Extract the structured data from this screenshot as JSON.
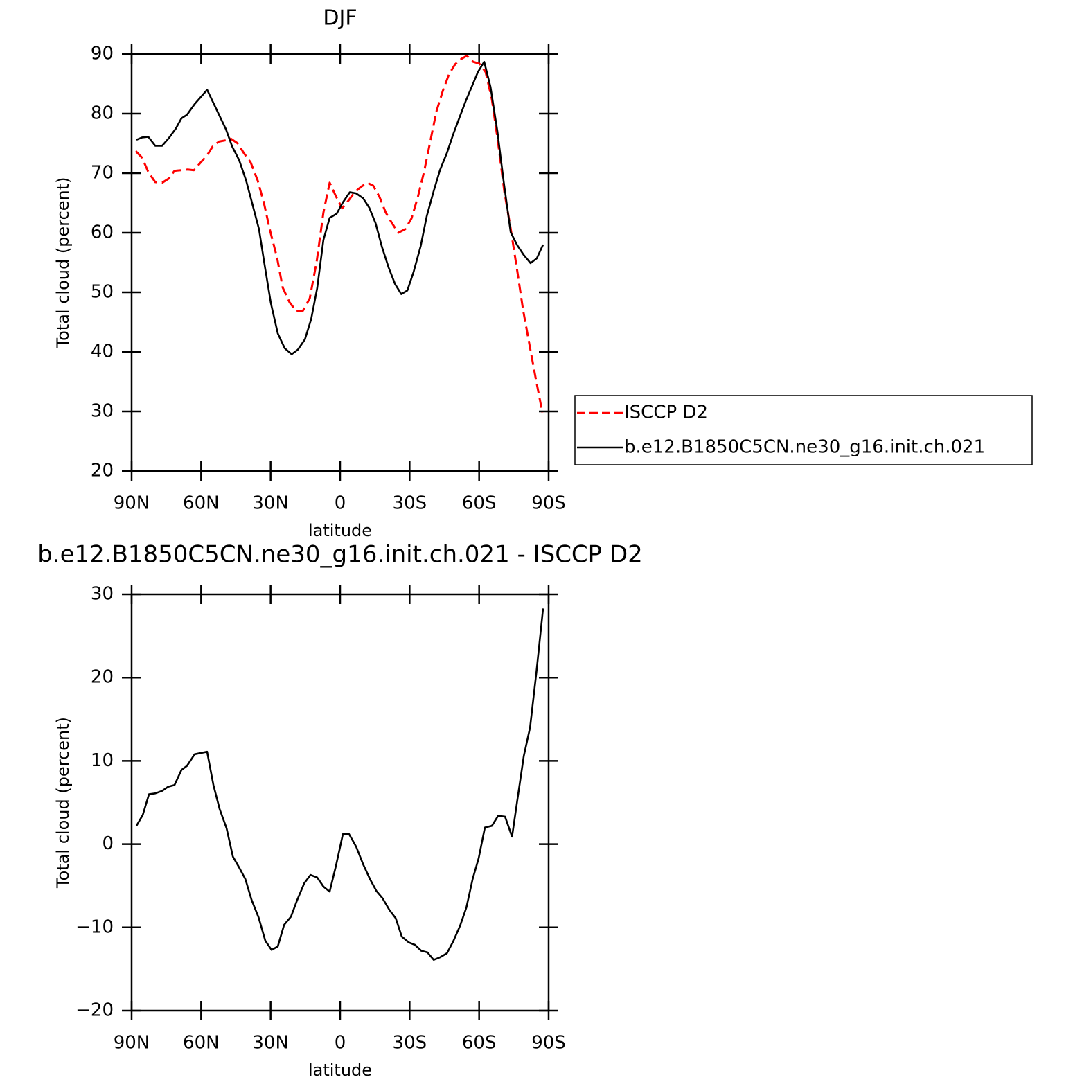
{
  "chart_data": [
    {
      "type": "line",
      "title": "DJF",
      "xlabel": "latitude",
      "ylabel": "Total cloud (percent)",
      "xlim": [
        90,
        -90
      ],
      "xticks": [
        {
          "value": 90,
          "label": "90N"
        },
        {
          "value": 60,
          "label": "60N"
        },
        {
          "value": 30,
          "label": "30N"
        },
        0,
        {
          "value": -30,
          "label": "30S"
        },
        {
          "value": -60,
          "label": "60S"
        },
        {
          "value": -90,
          "label": "90S"
        }
      ],
      "ylim": [
        20,
        90
      ],
      "yticks": [
        20,
        30,
        40,
        50,
        60,
        70,
        80,
        90
      ],
      "legend": "right",
      "series": [
        {
          "name": "ISCCP D2",
          "color": "#ff0000",
          "line_style": "dashed",
          "x": [
            88.2,
            85.5,
            82.8,
            79.8,
            76.8,
            73.9,
            71.5,
            68.5,
            65.8,
            63.1,
            60.4,
            57.4,
            55.0,
            52.3,
            49.6,
            47.2,
            44.2,
            41.6,
            38.6,
            35.6,
            32.9,
            30.2,
            27.2,
            24.8,
            21.8,
            18.8,
            16.1,
            13.1,
            10.1,
            7.2,
            4.5,
            1.8,
            -0.9,
            -3.6,
            -6.3,
            -9.0,
            -11.7,
            -14.3,
            -17.0,
            -19.7,
            -22.4,
            -25.1,
            -28.1,
            -30.8,
            -33.5,
            -36.2,
            -38.9,
            -41.6,
            -44.3,
            -47.0,
            -49.7,
            -52.4,
            -54.7,
            -57.4,
            -60.1,
            -62.8,
            -65.5,
            -68.2,
            -70.9,
            -73.6,
            -76.3,
            -79.0,
            -81.7,
            -84.4,
            -87.3
          ],
          "values": [
            73.7,
            72.6,
            70.2,
            68.5,
            68.4,
            69.1,
            70.4,
            70.5,
            70.6,
            70.5,
            71.7,
            73.0,
            74.5,
            75.3,
            75.5,
            75.8,
            75.0,
            73.4,
            71.8,
            68.8,
            65.0,
            60.3,
            55.8,
            50.8,
            48.3,
            46.8,
            46.9,
            49.0,
            55.2,
            63.4,
            68.4,
            66.1,
            64.1,
            65.4,
            66.8,
            67.7,
            68.4,
            67.9,
            66.0,
            63.4,
            61.6,
            60.0,
            60.6,
            62.4,
            65.9,
            70.2,
            75.3,
            80.4,
            83.8,
            86.6,
            88.3,
            89.2,
            89.7,
            88.7,
            88.4,
            87.0,
            82.4,
            75.1,
            66.9,
            60.7,
            54.0,
            47.0,
            41.3,
            35.6,
            29.8
          ]
        },
        {
          "name": "b.e12.B1850C5CN.ne30_g16.init.ch.021",
          "color": "#000000",
          "line_style": "solid",
          "x": [
            87.9,
            85.5,
            82.8,
            79.8,
            76.8,
            73.9,
            70.9,
            68.5,
            66.1,
            62.8,
            57.4,
            49.3,
            46.6,
            43.6,
            40.6,
            38.0,
            35.0,
            32.6,
            29.9,
            26.9,
            23.9,
            20.9,
            18.2,
            15.2,
            12.5,
            9.9,
            7.2,
            4.5,
            1.5,
            -1.2,
            -4.2,
            -6.9,
            -9.9,
            -12.6,
            -15.3,
            -18.0,
            -21.0,
            -23.7,
            -26.4,
            -29.0,
            -31.7,
            -34.8,
            -37.4,
            -40.4,
            -43.1,
            -46.1,
            -48.8,
            -51.5,
            -54.2,
            -56.8,
            -59.5,
            -62.2,
            -64.9,
            -67.9,
            -70.6,
            -73.6,
            -76.3,
            -79.2,
            -82.2,
            -84.9,
            -87.6
          ],
          "values": [
            75.6,
            76.0,
            76.1,
            74.6,
            74.6,
            75.9,
            77.5,
            79.2,
            79.8,
            81.6,
            84.0,
            77.4,
            74.5,
            72.2,
            68.8,
            65.0,
            60.6,
            54.6,
            48.2,
            43.1,
            40.6,
            39.6,
            40.4,
            42.1,
            45.5,
            50.7,
            58.8,
            62.5,
            63.2,
            65.1,
            66.8,
            66.6,
            65.8,
            64.2,
            61.6,
            57.7,
            54.1,
            51.4,
            49.7,
            50.3,
            53.4,
            57.8,
            62.8,
            67.0,
            70.5,
            73.4,
            76.5,
            79.3,
            82.1,
            84.5,
            87.0,
            88.7,
            84.5,
            77.0,
            68.6,
            60.1,
            58.0,
            56.3,
            54.9,
            55.7,
            58.0
          ]
        }
      ]
    },
    {
      "type": "line",
      "title": "b.e12.B1850C5CN.ne30_g16.init.ch.021 - ISCCP D2",
      "xlabel": "latitude",
      "ylabel": "Total cloud (percent)",
      "xlim": [
        90,
        -90
      ],
      "xticks": [
        {
          "value": 90,
          "label": "90N"
        },
        {
          "value": 60,
          "label": "60N"
        },
        {
          "value": 30,
          "label": "30N"
        },
        0,
        {
          "value": -30,
          "label": "30S"
        },
        {
          "value": -60,
          "label": "60S"
        },
        {
          "value": -90,
          "label": "90S"
        }
      ],
      "ylim": [
        -20,
        30
      ],
      "yticks": [
        {
          "value": -20,
          "label": "−20"
        },
        {
          "value": -10,
          "label": "−10"
        },
        0,
        10,
        20,
        30
      ],
      "series": [
        {
          "color": "#000000",
          "line_style": "solid",
          "x": [
            87.9,
            85.2,
            82.5,
            79.8,
            76.8,
            74.2,
            71.5,
            68.5,
            66.1,
            62.8,
            57.4,
            54.7,
            52.0,
            49.0,
            46.3,
            43.6,
            40.9,
            38.2,
            35.2,
            32.3,
            29.6,
            26.9,
            24.2,
            21.2,
            18.5,
            15.5,
            12.8,
            9.9,
            7.2,
            4.5,
            1.8,
            -1.2,
            -3.9,
            -6.9,
            -9.9,
            -12.9,
            -15.6,
            -18.3,
            -21.3,
            -24.0,
            -26.6,
            -29.6,
            -32.3,
            -35.0,
            -37.7,
            -40.4,
            -43.1,
            -46.1,
            -48.8,
            -51.8,
            -54.5,
            -57.2,
            -59.8,
            -62.5,
            -65.5,
            -68.2,
            -71.2,
            -74.2,
            -76.6,
            -79.3,
            -82.0,
            -84.7,
            -87.6
          ],
          "values": [
            2.2,
            3.5,
            6.0,
            6.1,
            6.4,
            6.9,
            7.1,
            8.9,
            9.4,
            10.8,
            11.1,
            7.1,
            4.2,
            1.9,
            -1.5,
            -2.8,
            -4.2,
            -6.7,
            -8.8,
            -11.6,
            -12.7,
            -12.3,
            -9.7,
            -8.7,
            -6.7,
            -4.7,
            -3.7,
            -4.0,
            -5.1,
            -5.7,
            -2.6,
            1.2,
            1.2,
            -0.3,
            -2.4,
            -4.2,
            -5.6,
            -6.5,
            -7.9,
            -8.9,
            -11.1,
            -11.8,
            -12.1,
            -12.8,
            -13.0,
            -13.9,
            -13.6,
            -13.1,
            -11.7,
            -9.8,
            -7.6,
            -4.2,
            -1.7,
            2.0,
            2.2,
            3.4,
            3.3,
            0.9,
            5.5,
            10.6,
            14.0,
            20.6,
            28.3
          ]
        }
      ]
    }
  ]
}
